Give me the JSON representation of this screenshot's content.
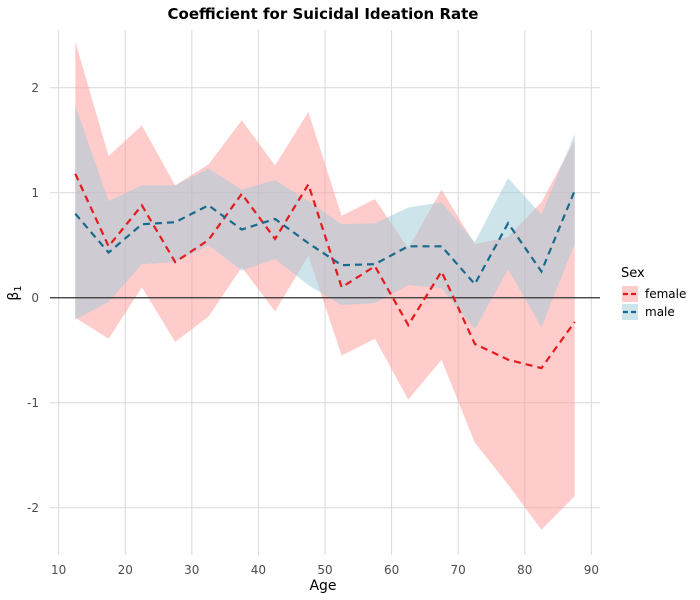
{
  "chart_data": {
    "type": "line",
    "title": "Coefficient for Suicidal Ideation Rate",
    "xlabel": "Age",
    "ylabel": "β",
    "ylabel_subscript": "1",
    "xlim": [
      8.7,
      91.3
    ],
    "ylim": [
      -2.45,
      2.55
    ],
    "x_ticks": [
      10,
      20,
      30,
      40,
      50,
      60,
      70,
      80,
      90
    ],
    "y_ticks": [
      -2,
      -1,
      0,
      1,
      2
    ],
    "grid": true,
    "reference_line_y": 0,
    "legend": {
      "title": "Sex",
      "position": "right"
    },
    "x": [
      12.5,
      17.5,
      22.5,
      27.5,
      32.5,
      37.5,
      42.5,
      47.5,
      52.5,
      57.5,
      62.5,
      67.5,
      72.5,
      77.5,
      82.5,
      87.5
    ],
    "series": [
      {
        "name": "female",
        "line_color": "#e41a1c",
        "ribbon_color": "#ff9a9a",
        "values": [
          1.18,
          0.49,
          0.88,
          0.34,
          0.55,
          0.99,
          0.56,
          1.08,
          0.1,
          0.3,
          -0.26,
          0.25,
          -0.44,
          -0.59,
          -0.67,
          -0.23
        ],
        "upper": [
          2.44,
          1.35,
          1.64,
          1.07,
          1.27,
          1.69,
          1.26,
          1.77,
          0.78,
          0.94,
          0.47,
          1.03,
          0.51,
          0.58,
          0.91,
          1.5
        ],
        "lower": [
          -0.19,
          -0.39,
          0.1,
          -0.42,
          -0.18,
          0.29,
          -0.13,
          0.4,
          -0.55,
          -0.39,
          -0.97,
          -0.59,
          -1.38,
          -1.78,
          -2.21,
          -1.89
        ]
      },
      {
        "name": "male",
        "line_color": "#176a8c",
        "ribbon_color": "#9ecad8",
        "values": [
          0.8,
          0.43,
          0.7,
          0.72,
          0.88,
          0.65,
          0.75,
          0.52,
          0.31,
          0.32,
          0.49,
          0.49,
          0.13,
          0.71,
          0.25,
          1.02
        ],
        "upper": [
          1.83,
          0.92,
          1.07,
          1.07,
          1.23,
          1.03,
          1.12,
          0.92,
          0.7,
          0.71,
          0.86,
          0.91,
          0.53,
          1.14,
          0.79,
          1.56
        ],
        "lower": [
          -0.21,
          -0.04,
          0.32,
          0.34,
          0.5,
          0.26,
          0.37,
          0.12,
          -0.07,
          -0.05,
          0.12,
          0.09,
          -0.3,
          0.27,
          -0.28,
          0.51
        ]
      }
    ]
  }
}
